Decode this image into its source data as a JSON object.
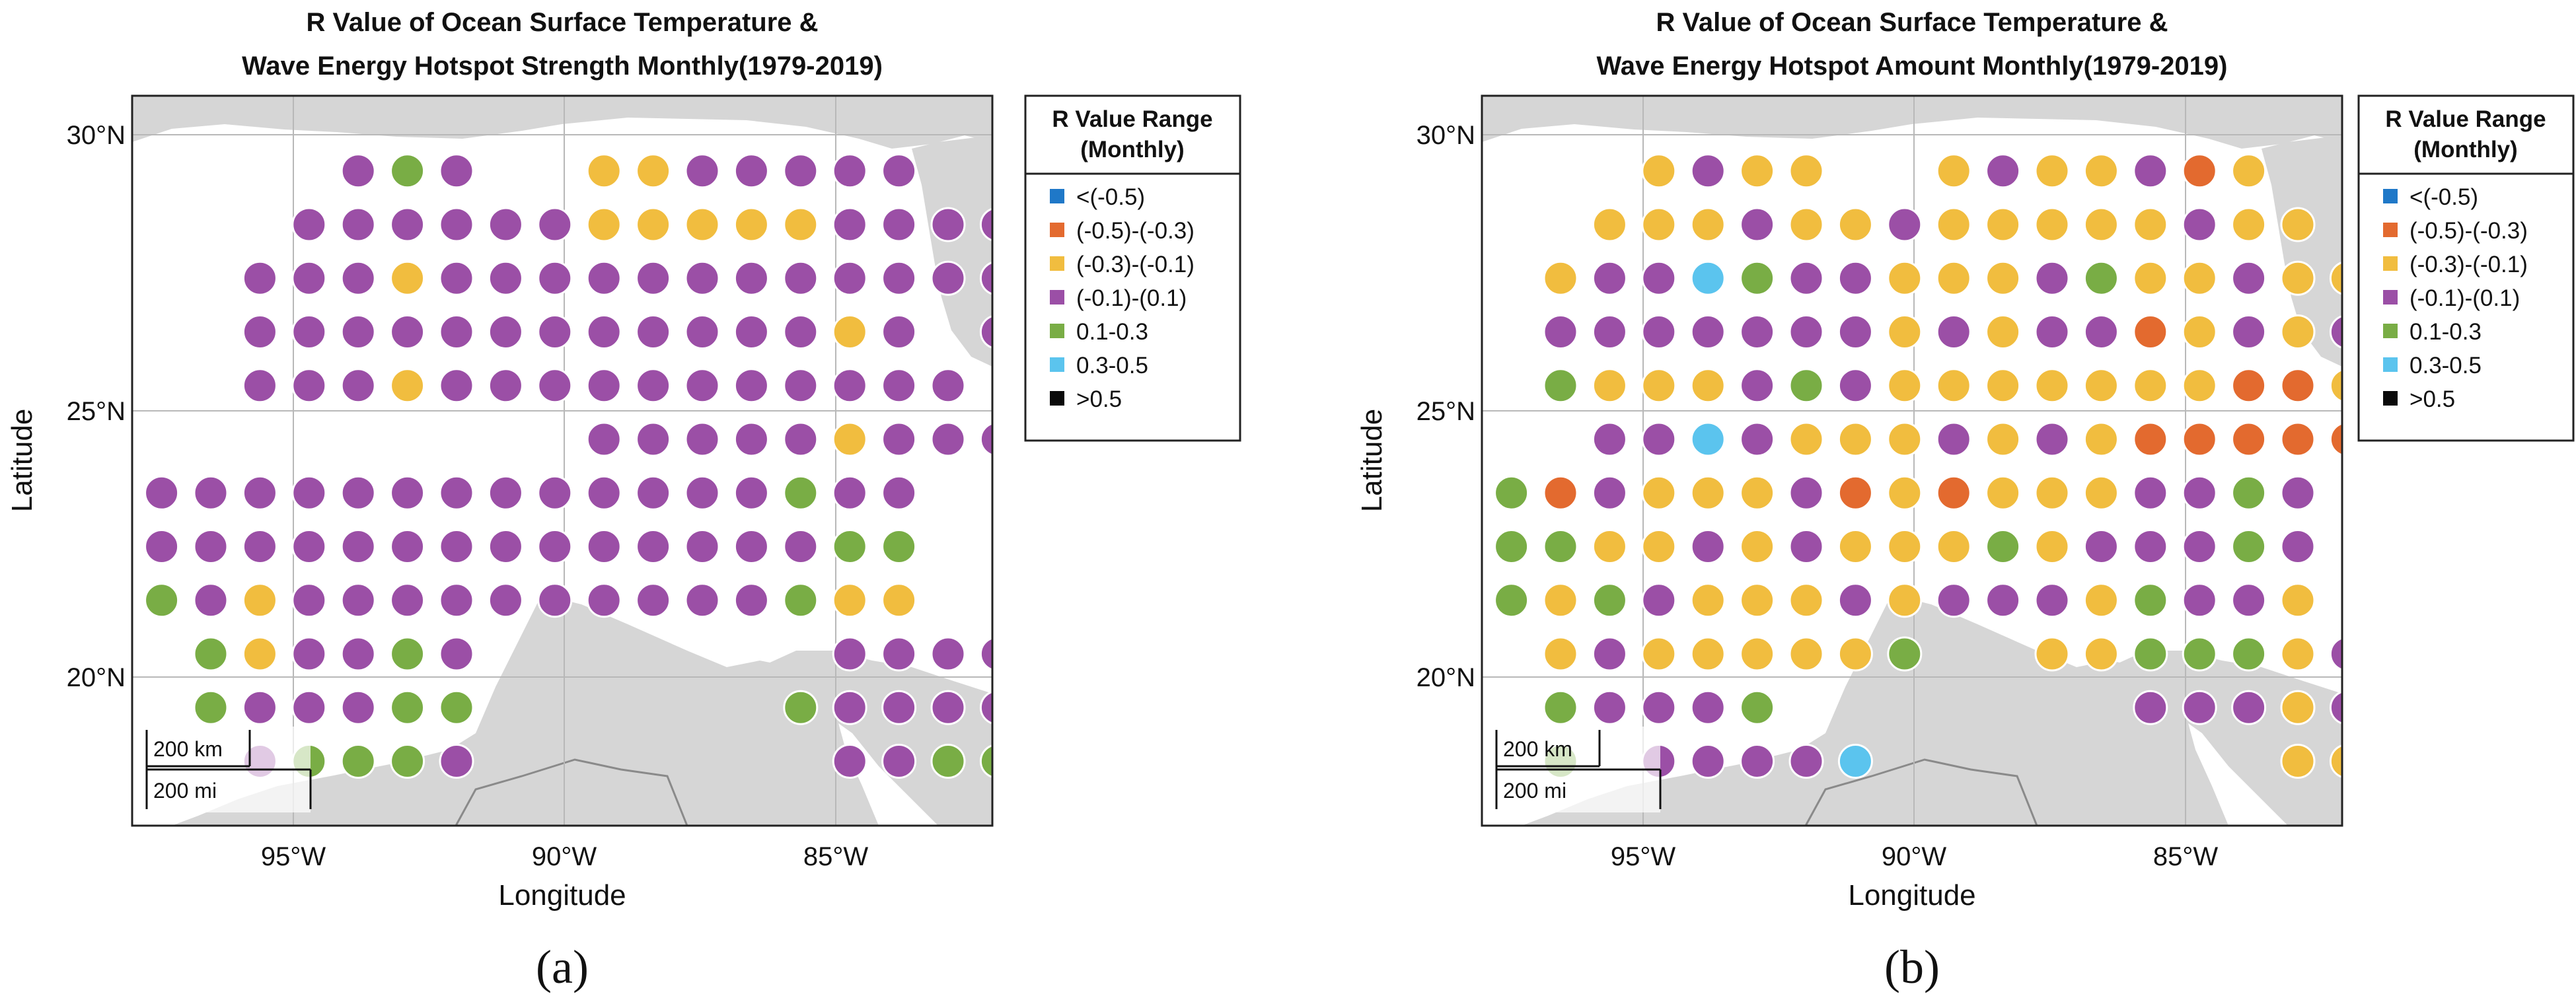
{
  "colors": {
    "c1": "#1f78c8",
    "c2": "#e36a2f",
    "c3": "#f1bd3f",
    "c4": "#9b4fa6",
    "c5": "#79ad45",
    "c6": "#5bc4ee",
    "c7": "#0a0a0a",
    "land": "#d6d6d6",
    "water": "#ffffff"
  },
  "legend": {
    "header_line1": "R Value Range",
    "header_line2": "(Monthly)",
    "items": [
      {
        "key": "c1",
        "label": "<(-0.5)"
      },
      {
        "key": "c2",
        "label": "(-0.5)-(-0.3)"
      },
      {
        "key": "c3",
        "label": "(-0.3)-(-0.1)"
      },
      {
        "key": "c4",
        "label": "(-0.1)-(0.1)"
      },
      {
        "key": "c5",
        "label": "0.1-0.3"
      },
      {
        "key": "c6",
        "label": "0.3-0.5"
      },
      {
        "key": "c7",
        "label": ">0.5"
      }
    ]
  },
  "axes": {
    "xlabel": "Longitude",
    "ylabel": "Latitude",
    "xticks": [
      {
        "lon": -95,
        "label": "95°W"
      },
      {
        "lon": -90,
        "label": "90°W"
      },
      {
        "lon": -85,
        "label": "85°W"
      }
    ],
    "yticks": [
      {
        "lat": 30,
        "label": "30°N"
      },
      {
        "lat": 25,
        "label": "25°N"
      },
      {
        "lat": 20,
        "label": "20°N"
      }
    ],
    "lon_range": [
      -98.1,
      -80.6
    ],
    "lat_range": [
      17.3,
      30.9
    ]
  },
  "scale_bar": {
    "km": "200 km",
    "mi": "200 mi"
  },
  "grid": {
    "lon_start": -97.5,
    "lon_step": 1.0,
    "lat_rows": [
      29.5,
      28.5,
      27.5,
      26.5,
      25.5,
      24.5,
      23.5,
      22.5,
      21.5,
      20.5,
      19.5,
      18.5
    ]
  },
  "chart_data": [
    {
      "type": "scatter",
      "panel_label": "(a)",
      "title_line1": "R Value of Ocean Surface Temperature &",
      "title_line2": "Wave Energy Hotspot Strength Monthly(1979-2019)",
      "xlabel": "Longitude",
      "ylabel": "Latitude",
      "cells": [
        "....454..3344444..",
        "...444444333334444",
        "..4443444444444444",
        "..44444444444434.4",
        "..444344444444444",
        ".........4444434444",
        "4444444444444544.",
        "4444444444444455.",
        "5434444444444533.",
        ".534454.......44444",
        ".544455......5444444",
        "..45554.......4455443"
      ]
    },
    {
      "type": "scatter",
      "panel_label": "(b)",
      "title_line1": "R Value of Ocean Surface Temperature &",
      "title_line2": "Wave Energy Hotspot Amount Monthly(1979-2019)",
      "xlabel": "Longitude",
      "ylabel": "Latitude",
      "cells": [
        "...3433..3433423..",
        "..333433433333433",
        ".34465443334533433",
        ".44444443434423434",
        ".53334543333333223",
        "..44643334343222223",
        "52433342323334454.",
        "55334343335344454.",
        "53543334344435443.",
        ".34333335..335553452",
        ".54445.......4443434",
        ".5.44446........33443"
      ]
    }
  ]
}
